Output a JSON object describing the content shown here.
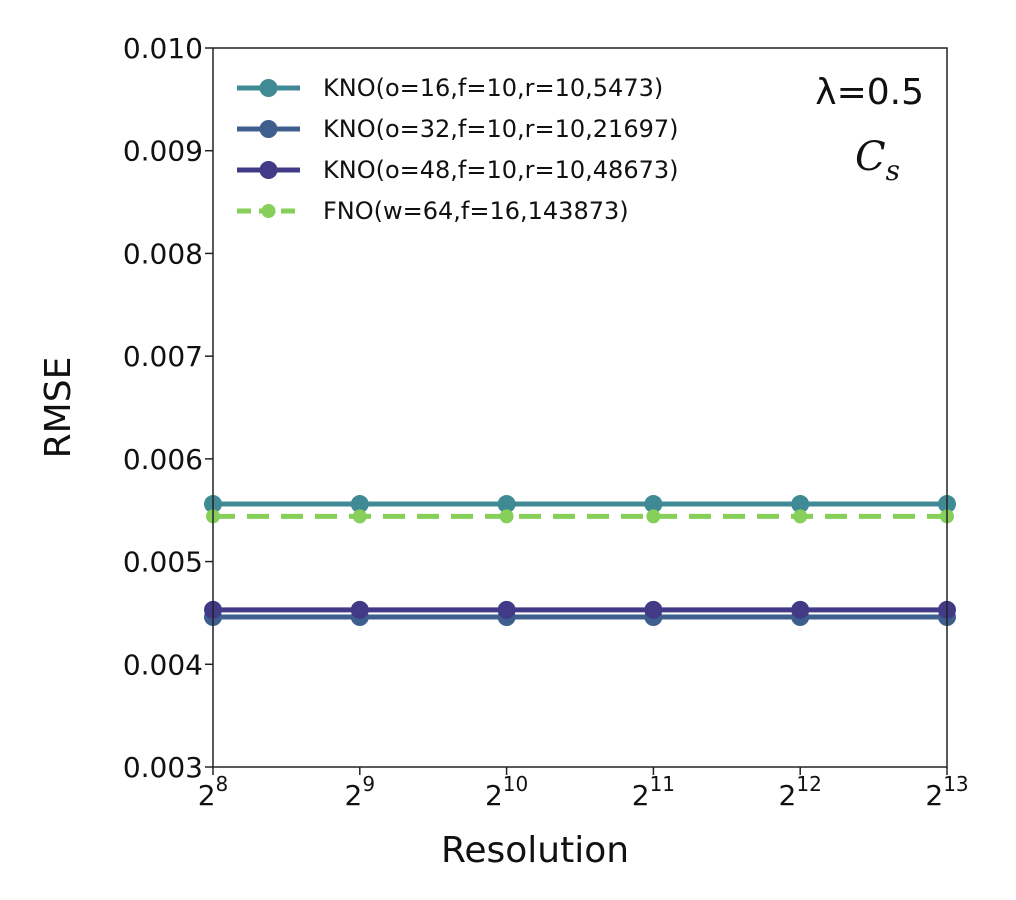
{
  "chart_data": {
    "type": "line",
    "xlabel": "Resolution",
    "ylabel": "RMSE",
    "x": [
      8,
      9,
      10,
      11,
      12,
      13
    ],
    "x_tick_labels": [
      {
        "base": "2",
        "exp": "8"
      },
      {
        "base": "2",
        "exp": "9"
      },
      {
        "base": "2",
        "exp": "10"
      },
      {
        "base": "2",
        "exp": "11"
      },
      {
        "base": "2",
        "exp": "12"
      },
      {
        "base": "2",
        "exp": "13"
      }
    ],
    "x_scale": "log2",
    "xlim": [
      8,
      13
    ],
    "ylim": [
      0.003,
      0.01
    ],
    "y_ticks": [
      "0.003",
      "0.004",
      "0.005",
      "0.006",
      "0.007",
      "0.008",
      "0.009",
      "0.010"
    ],
    "grid": false,
    "legend_position": "top-left",
    "annotations": {
      "lambda": "λ=0.5",
      "cs_main": "C",
      "cs_sub": "s"
    },
    "series": [
      {
        "name": "KNO(o=16,f=10,r=10,5473)",
        "color": "#3f8a95",
        "dash": "solid",
        "values": [
          0.00556,
          0.00556,
          0.00556,
          0.00556,
          0.00556,
          0.00556
        ]
      },
      {
        "name": "KNO(o=32,f=10,r=10,21697)",
        "color": "#3e5f8e",
        "dash": "solid",
        "values": [
          0.00446,
          0.00446,
          0.00446,
          0.00446,
          0.00446,
          0.00446
        ]
      },
      {
        "name": "KNO(o=48,f=10,r=10,48673)",
        "color": "#423a86",
        "dash": "solid",
        "values": [
          0.00453,
          0.00453,
          0.00453,
          0.00453,
          0.00453,
          0.00453
        ]
      },
      {
        "name": "FNO(w=64,f=16,143873)",
        "color": "#86cf5a",
        "dash": "dashed",
        "values": [
          0.00544,
          0.00544,
          0.00544,
          0.00544,
          0.00544,
          0.00544
        ]
      }
    ]
  }
}
